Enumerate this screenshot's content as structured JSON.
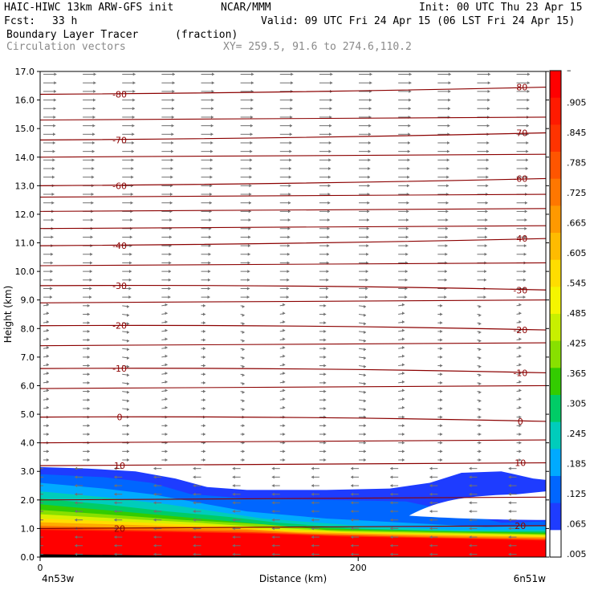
{
  "header": {
    "model": "HAIC-HIWC 13km ARW-GFS init",
    "org": "NCAR/MMM",
    "init": "Init: 00 UTC Thu 23 Apr 15",
    "fcst_label": "Fcst:",
    "fcst_value": "33 h",
    "valid": "Valid: 09 UTC Fri 24 Apr 15 (06 LST Fri 24 Apr 15)",
    "field": "Boundary Layer Tracer",
    "units": "(fraction)",
    "overlay": "Circulation vectors",
    "xy": "XY= 259.5, 91.6 to 274.6,110.2"
  },
  "chart_data": {
    "type": "heatmap",
    "xlabel": "Distance (km)",
    "ylabel": "Height (km)",
    "xlim": [
      0,
      318
    ],
    "ylim": [
      0,
      17
    ],
    "x_ticks": [
      {
        "value": 0,
        "label": "0"
      },
      {
        "value": 200,
        "label": "200"
      }
    ],
    "y_ticks": [
      "0.0",
      "1.0",
      "2.0",
      "3.0",
      "4.0",
      "5.0",
      "6.0",
      "7.0",
      "8.0",
      "9.0",
      "10.0",
      "11.0",
      "12.0",
      "13.0",
      "14.0",
      "15.0",
      "16.0",
      "17.0"
    ],
    "endpoint_labels": {
      "left": "4n53w",
      "right": "6n51w"
    },
    "colorbar": {
      "labels": [
        "–",
        ".905",
        ".845",
        ".785",
        ".725",
        ".665",
        ".605",
        ".545",
        ".485",
        ".425",
        ".365",
        ".305",
        ".245",
        ".185",
        ".125",
        ".065",
        ".005"
      ],
      "colors": [
        "#ff0000",
        "#ff1a00",
        "#ff3300",
        "#ff5500",
        "#ff7700",
        "#ff9900",
        "#ffbb00",
        "#ffdd00",
        "#f5f500",
        "#c8f000",
        "#88e000",
        "#33cc00",
        "#00cc66",
        "#00ccbb",
        "#00aaff",
        "#0066ff",
        "#1e3cff",
        "#ffffff"
      ]
    },
    "contours": [
      {
        "label": "-80",
        "y": 16.2
      },
      {
        "label": "-70",
        "y": 14.6
      },
      {
        "label": "-60",
        "y": 13.0
      },
      {
        "label": "-40",
        "y": 10.9
      },
      {
        "label": "-30",
        "y": 9.5
      },
      {
        "label": "-20",
        "y": 8.1
      },
      {
        "label": "-10",
        "y": 6.6
      },
      {
        "label": "0",
        "y": 4.9
      },
      {
        "label": "10",
        "y": 3.2
      },
      {
        "label": "20",
        "y": 1.0
      }
    ],
    "contour_color": "#8b0000",
    "vector_color": "#707070"
  }
}
